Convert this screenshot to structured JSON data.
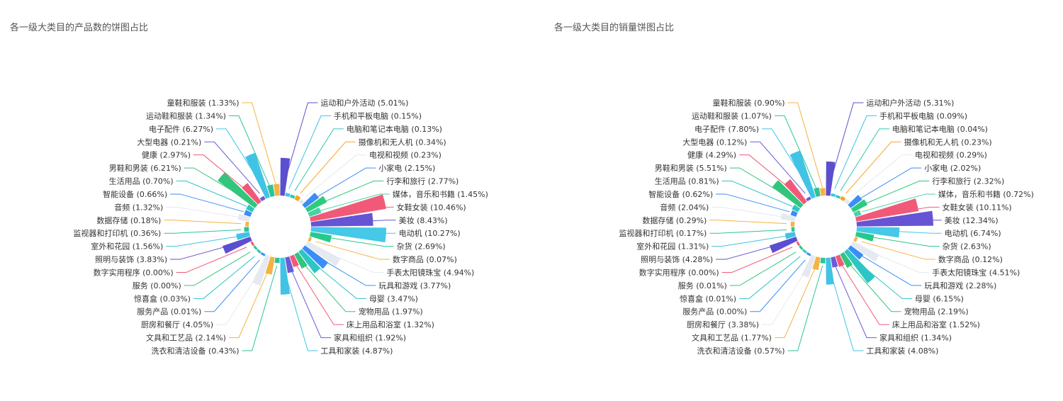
{
  "chart_data": [
    {
      "type": "pie",
      "variant": "rose",
      "title": "各一级大类目的产品数的饼图占比",
      "categories": [
        "运动和户外活动",
        "手机和平板电脑",
        "电脑和笔记本电脑",
        "摄像机和无人机",
        "电视和视频",
        "小家电",
        "行李和旅行",
        "媒体，音乐和书籍",
        "女鞋女装",
        "美妆",
        "电动机",
        "杂货",
        "数字商品",
        "手表太阳镜珠宝",
        "玩具和游戏",
        "母婴",
        "宠物用品",
        "床上用品和浴室",
        "家具和组织",
        "工具和家装",
        "洗衣和清洁设备",
        "文具和工艺品",
        "厨房和餐厅",
        "服务产品",
        "惊喜盒",
        "服务",
        "数字实用程序",
        "照明与装饰",
        "室外和花园",
        "监视器和打印机",
        "数据存储",
        "音频",
        "智能设备",
        "生活用品",
        "男鞋和男装",
        "健康",
        "大型电器",
        "电子配件",
        "运动鞋和服装",
        "童鞋和服装"
      ],
      "values": [
        5.01,
        0.15,
        0.13,
        0.34,
        0.23,
        2.15,
        2.77,
        1.45,
        10.46,
        8.43,
        10.27,
        2.69,
        0.07,
        4.94,
        3.77,
        3.47,
        1.97,
        1.32,
        1.92,
        4.87,
        0.43,
        2.14,
        4.05,
        0.01,
        0.03,
        0.0,
        0.0,
        3.83,
        1.56,
        0.36,
        0.18,
        1.32,
        0.66,
        0.7,
        6.21,
        2.97,
        0.21,
        6.27,
        1.34,
        1.33
      ],
      "labels": [
        "运动和户外活动 (5.01%)",
        "手机和平板电脑 (0.15%)",
        "电脑和笔记本电脑 (0.13%)",
        "摄像机和无人机 (0.34%)",
        "电视和视频 (0.23%)",
        "小家电 (2.15%)",
        "行李和旅行 (2.77%)",
        "媒体，音乐和书籍 (1.45%)",
        "女鞋女装 (10.46%)",
        "美妆 (8.43%)",
        "电动机 (10.27%)",
        "杂货 (2.69%)",
        "数字商品 (0.07%)",
        "手表太阳镜珠宝 (4.94%)",
        "玩具和游戏 (3.77%)",
        "母婴 (3.47%)",
        "宠物用品 (1.97%)",
        "床上用品和浴室 (1.32%)",
        "家具和组织 (1.92%)",
        "工具和家装 (4.87%)",
        "洗衣和清洁设备 (0.43%)",
        "文具和工艺品 (2.14%)",
        "厨房和餐厅 (4.05%)",
        "服务产品 (0.01%)",
        "惊喜盒 (0.03%)",
        "服务 (0.00%)",
        "数字实用程序 (0.00%)",
        "照明与装饰 (3.83%)",
        "室外和花园 (1.56%)",
        "监视器和打印机 (0.36%)",
        "数据存储 (0.18%)",
        "音频 (1.32%)",
        "智能设备 (0.66%)",
        "生活用品 (0.70%)",
        "男鞋和男装 (6.21%)",
        "健康 (2.97%)",
        "大型电器 (0.21%)",
        "电子配件 (6.27%)",
        "运动鞋和服装 (1.34%)",
        "童鞋和服装 (1.33%)"
      ]
    },
    {
      "type": "pie",
      "variant": "rose",
      "title": "各一级大类目的销量饼图占比",
      "categories": [
        "运动和户外活动",
        "手机和平板电脑",
        "电脑和笔记本电脑",
        "摄像机和无人机",
        "电视和视频",
        "小家电",
        "行李和旅行",
        "媒体，音乐和书籍",
        "女鞋女装",
        "美妆",
        "电动机",
        "杂货",
        "数字商品",
        "手表太阳镜珠宝",
        "玩具和游戏",
        "母婴",
        "宠物用品",
        "床上用品和浴室",
        "家具和组织",
        "工具和家装",
        "洗衣和清洁设备",
        "文具和工艺品",
        "厨房和餐厅",
        "服务产品",
        "惊喜盒",
        "服务",
        "数字实用程序",
        "照明与装饰",
        "室外和花园",
        "监视器和打印机",
        "数据存储",
        "音频",
        "智能设备",
        "生活用品",
        "男鞋和男装",
        "健康",
        "大型电器",
        "电子配件",
        "运动鞋和服装",
        "童鞋和服装"
      ],
      "values": [
        5.31,
        0.09,
        0.04,
        0.23,
        0.29,
        2.02,
        2.32,
        0.72,
        10.11,
        12.34,
        6.74,
        2.63,
        0.12,
        4.51,
        2.28,
        6.15,
        2.19,
        1.52,
        1.34,
        4.08,
        0.57,
        1.77,
        3.38,
        0.0,
        0.01,
        0.01,
        0.0,
        4.28,
        1.31,
        0.17,
        0.29,
        2.04,
        0.62,
        0.81,
        5.51,
        4.29,
        0.12,
        7.8,
        1.07,
        0.9
      ],
      "labels": [
        "运动和户外活动 (5.31%)",
        "手机和平板电脑 (0.09%)",
        "电脑和笔记本电脑 (0.04%)",
        "摄像机和无人机 (0.23%)",
        "电视和视频 (0.29%)",
        "小家电 (2.02%)",
        "行李和旅行 (2.32%)",
        "媒体，音乐和书籍 (0.72%)",
        "女鞋女装 (10.11%)",
        "美妆 (12.34%)",
        "电动机 (6.74%)",
        "杂货 (2.63%)",
        "数字商品 (0.12%)",
        "手表太阳镜珠宝 (4.51%)",
        "玩具和游戏 (2.28%)",
        "母婴 (6.15%)",
        "宠物用品 (2.19%)",
        "床上用品和浴室 (1.52%)",
        "家具和组织 (1.34%)",
        "工具和家装 (4.08%)",
        "洗衣和清洁设备 (0.57%)",
        "文具和工艺品 (1.77%)",
        "厨房和餐厅 (3.38%)",
        "服务产品 (0.00%)",
        "惊喜盒 (0.01%)",
        "服务 (0.01%)",
        "数字实用程序 (0.00%)",
        "照明与装饰 (4.28%)",
        "室外和花园 (1.31%)",
        "监视器和打印机 (0.17%)",
        "数据存储 (0.29%)",
        "音频 (2.04%)",
        "智能设备 (0.62%)",
        "生活用品 (0.81%)",
        "男鞋和男装 (5.51%)",
        "健康 (4.29%)",
        "大型电器 (0.12%)",
        "电子配件 (7.80%)",
        "运动鞋和服装 (1.07%)",
        "童鞋和服装 (0.90%)"
      ]
    }
  ],
  "palette": [
    "#5b4fcf",
    "#3bc4e8",
    "#2fc9a9",
    "#f5a623",
    "#e5e9f0",
    "#3a8ef6",
    "#2ecb7d",
    "#43d4a7",
    "#f05a78",
    "#6654d4",
    "#46c8e8",
    "#26c98a",
    "#f5b342",
    "#e5e9f0",
    "#3a8ef6",
    "#2ec6c4",
    "#32c57c",
    "#f05a78",
    "#6b5bd6",
    "#40c3e4",
    "#2dc39a",
    "#f5b342",
    "#e5e9f0",
    "#3a8ef6",
    "#2ec6c4",
    "#32c57c",
    "#f05a78",
    "#5b4fcf",
    "#40c3e4",
    "#2dc39a",
    "#f5b342",
    "#e5e9f0",
    "#3a8ef6",
    "#2ec6c4",
    "#32c57c",
    "#f05a78",
    "#6b5bd6",
    "#40c3e4",
    "#2dc39a",
    "#f5b342"
  ]
}
